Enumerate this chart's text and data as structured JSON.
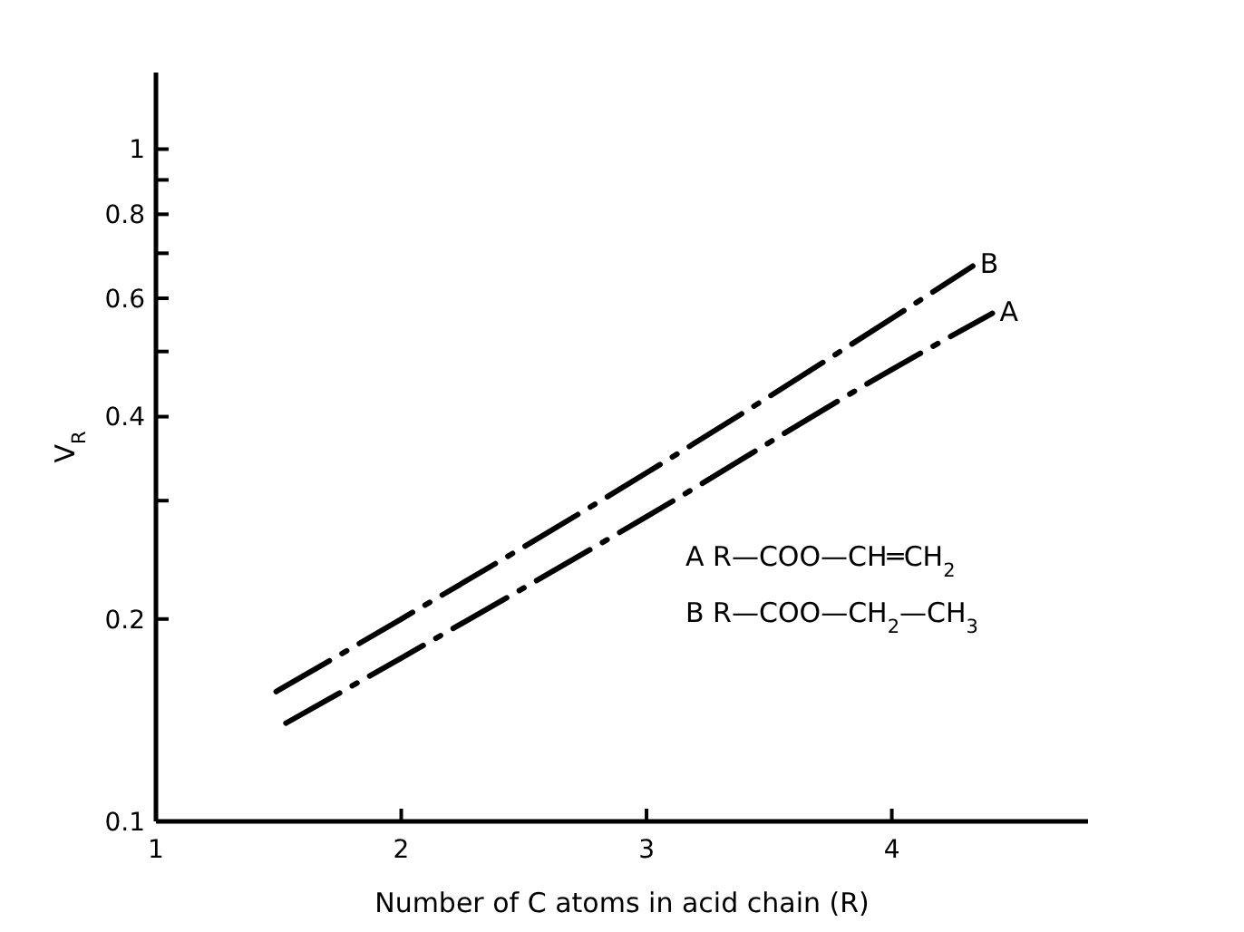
{
  "chart_data": {
    "type": "line",
    "xlabel": "Number of C atoms in acid chain  (R)",
    "ylabel": "V$_{R}$",
    "xlim": [
      1,
      4.8
    ],
    "xticks": [
      1,
      2,
      3,
      4
    ],
    "ylim": [
      0.1,
      1.3
    ],
    "yticks": [
      0.1,
      0.2,
      {
        "value": 0.3,
        "label": null
      },
      0.4,
      {
        "value": 0.5,
        "label": null
      },
      0.6,
      {
        "value": 0.7,
        "label": null
      },
      0.8,
      {
        "value": 0.9,
        "label": null
      },
      1
    ],
    "log": "y",
    "grid": false,
    "line_style": "dashed",
    "marker": "none",
    "series": [
      {
        "name": "A",
        "color": "#000000",
        "x": [
          1.53,
          2,
          3,
          4,
          4.41
        ],
        "values": [
          0.14,
          0.175,
          0.284,
          0.47,
          0.57
        ]
      },
      {
        "name": "B",
        "color": "#000000",
        "x": [
          1.49,
          2,
          3,
          4,
          4.33
        ],
        "values": [
          0.156,
          0.2,
          0.33,
          0.56,
          0.67
        ]
      }
    ],
    "annotations": [
      "A   R—COO—CH═CH$_{2}$",
      "B   R—COO—CH$_{2}$—CH$_{3}$"
    ]
  }
}
